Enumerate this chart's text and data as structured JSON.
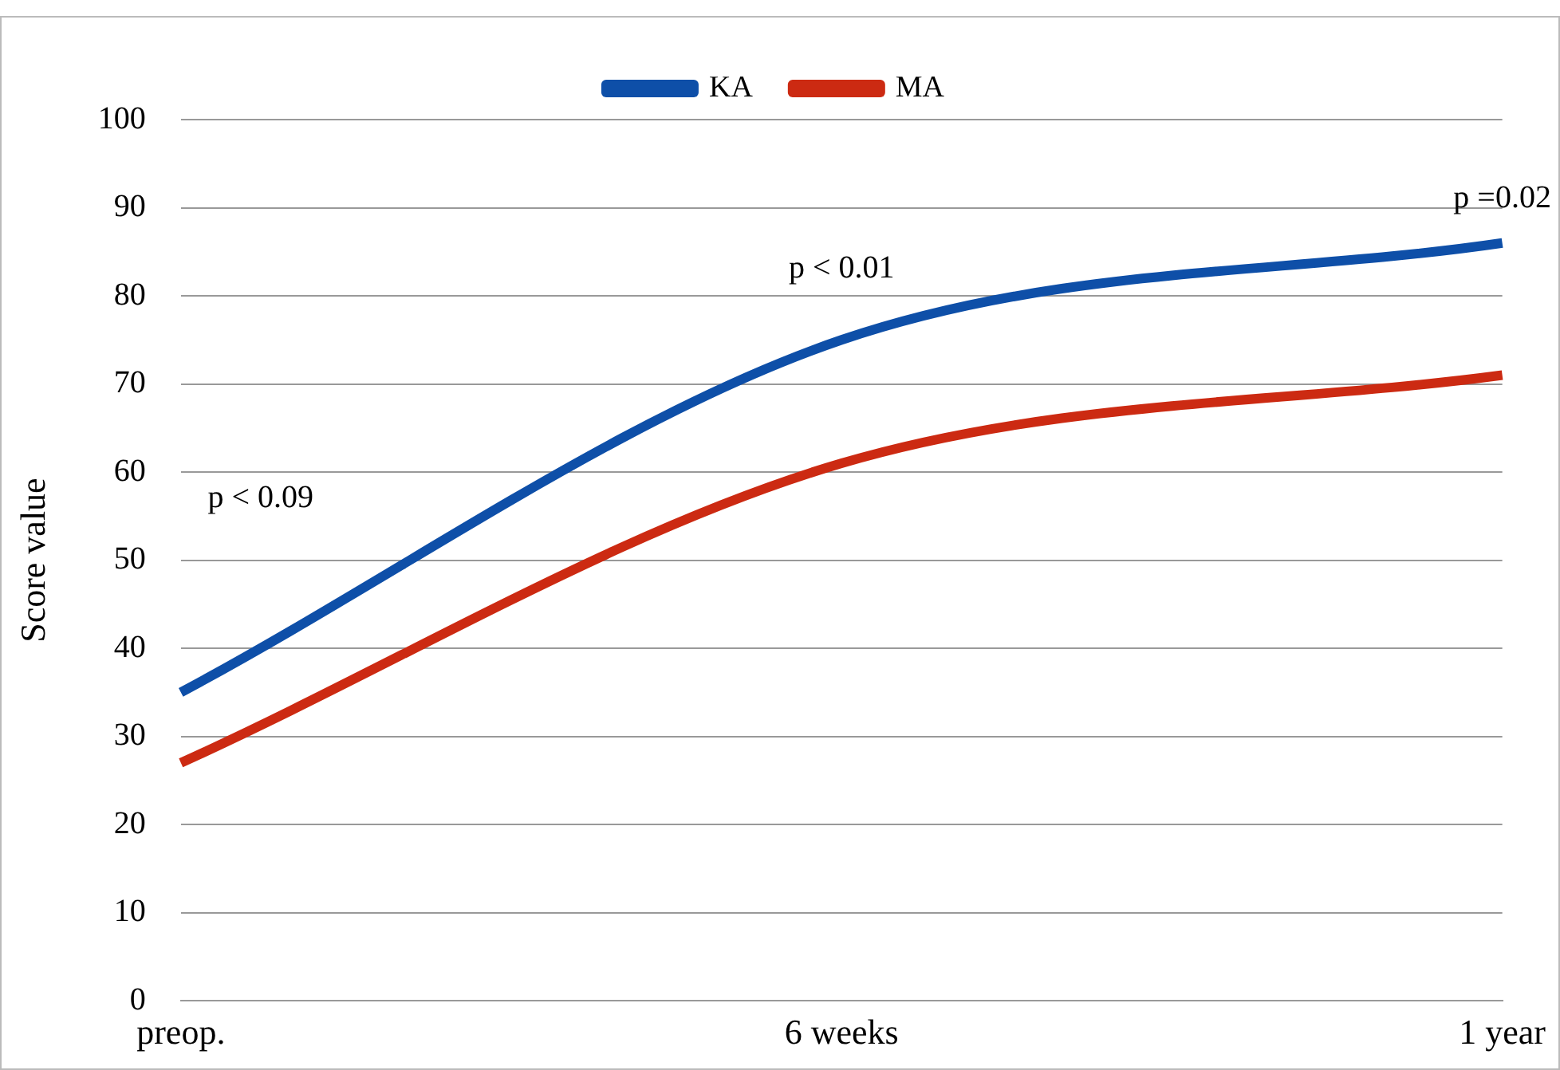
{
  "chart_data": {
    "type": "line",
    "ylabel": "Score value",
    "categories": [
      "preop.",
      "6 weeks",
      "1 year"
    ],
    "series": [
      {
        "name": "KA",
        "color": "#0e4fa8",
        "values": [
          35,
          75,
          86
        ]
      },
      {
        "name": "MA",
        "color": "#cc2a12",
        "values": [
          27,
          61,
          71
        ]
      }
    ],
    "ylim": [
      0,
      100
    ],
    "yticks": [
      0,
      10,
      20,
      30,
      40,
      50,
      60,
      70,
      80,
      90,
      100
    ],
    "grid": "y",
    "legend": "top",
    "marker": "none",
    "line_style": "solid",
    "annotations": [
      "p < 0.09",
      "p < 0.01",
      "p =0.02"
    ]
  }
}
